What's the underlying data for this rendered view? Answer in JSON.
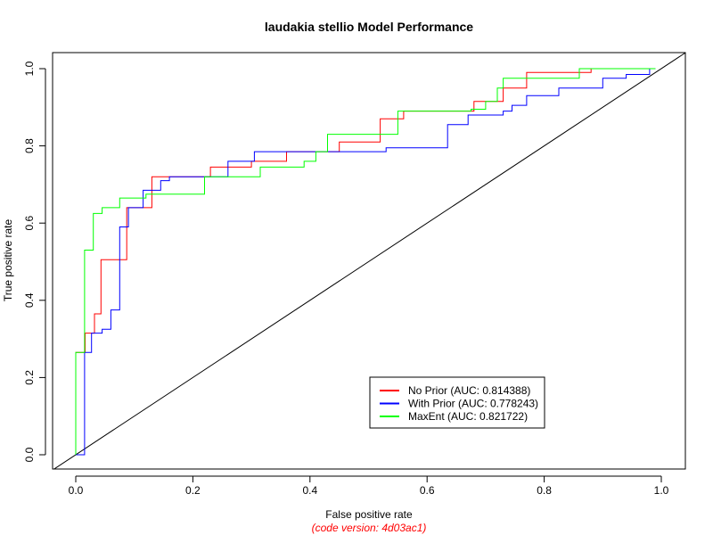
{
  "chart_data": {
    "type": "line",
    "title": "laudakia stellio Model Performance",
    "xlabel": "False positive rate",
    "ylabel": "True positive rate",
    "note": "(code version: 4d03ac1)",
    "note_color": "#ff0000",
    "xlim": [
      0,
      1
    ],
    "ylim": [
      0,
      1
    ],
    "xticks": [
      "0.0",
      "0.2",
      "0.4",
      "0.6",
      "0.8",
      "1.0"
    ],
    "yticks": [
      "0.0",
      "0.2",
      "0.4",
      "0.6",
      "0.8",
      "1.0"
    ],
    "grid": false,
    "legend_position": "bottom-right",
    "reference_line": {
      "x": [
        0,
        1
      ],
      "y": [
        0,
        1
      ],
      "color": "#000000"
    },
    "series": [
      {
        "name": "No Prior (AUC: 0.814388)",
        "color": "#ff0000",
        "x": [
          0.0,
          0.0,
          0.016,
          0.016,
          0.032,
          0.032,
          0.043,
          0.043,
          0.087,
          0.087,
          0.13,
          0.13,
          0.165,
          0.165,
          0.23,
          0.23,
          0.3,
          0.3,
          0.36,
          0.36,
          0.45,
          0.45,
          0.52,
          0.52,
          0.56,
          0.56,
          0.68,
          0.68,
          0.73,
          0.73,
          0.77,
          0.77,
          0.8,
          0.8,
          0.88,
          0.88,
          0.99
        ],
        "y": [
          0.0,
          0.265,
          0.265,
          0.315,
          0.315,
          0.365,
          0.365,
          0.505,
          0.505,
          0.64,
          0.64,
          0.72,
          0.72,
          0.72,
          0.72,
          0.745,
          0.745,
          0.76,
          0.76,
          0.785,
          0.785,
          0.81,
          0.81,
          0.87,
          0.87,
          0.89,
          0.89,
          0.915,
          0.915,
          0.95,
          0.95,
          0.99,
          0.99,
          0.99,
          0.99,
          1.0,
          1.0
        ]
      },
      {
        "name": "With Prior (AUC: 0.778243)",
        "color": "#0000ff",
        "x": [
          0.0,
          0.015,
          0.015,
          0.027,
          0.027,
          0.045,
          0.045,
          0.06,
          0.06,
          0.075,
          0.075,
          0.09,
          0.09,
          0.115,
          0.115,
          0.145,
          0.145,
          0.16,
          0.16,
          0.26,
          0.26,
          0.305,
          0.305,
          0.53,
          0.53,
          0.635,
          0.635,
          0.67,
          0.67,
          0.73,
          0.73,
          0.745,
          0.745,
          0.77,
          0.77,
          0.825,
          0.825,
          0.9,
          0.9,
          0.94,
          0.94,
          0.98,
          0.98,
          0.99
        ],
        "y": [
          0.0,
          0.0,
          0.265,
          0.265,
          0.315,
          0.315,
          0.325,
          0.325,
          0.375,
          0.375,
          0.59,
          0.59,
          0.64,
          0.64,
          0.685,
          0.685,
          0.71,
          0.71,
          0.72,
          0.72,
          0.76,
          0.76,
          0.785,
          0.785,
          0.795,
          0.795,
          0.855,
          0.855,
          0.88,
          0.88,
          0.89,
          0.89,
          0.905,
          0.905,
          0.93,
          0.93,
          0.95,
          0.95,
          0.975,
          0.975,
          0.985,
          0.985,
          1.0,
          1.0
        ]
      },
      {
        "name": "MaxEnt (AUC: 0.821722)",
        "color": "#00ff00",
        "x": [
          0.0,
          0.0,
          0.015,
          0.015,
          0.03,
          0.03,
          0.045,
          0.045,
          0.075,
          0.075,
          0.12,
          0.12,
          0.22,
          0.22,
          0.315,
          0.315,
          0.39,
          0.39,
          0.41,
          0.41,
          0.43,
          0.43,
          0.55,
          0.55,
          0.675,
          0.675,
          0.7,
          0.7,
          0.72,
          0.72,
          0.73,
          0.73,
          0.77,
          0.77,
          0.86,
          0.86,
          0.99
        ],
        "y": [
          0.0,
          0.265,
          0.265,
          0.53,
          0.53,
          0.625,
          0.625,
          0.64,
          0.64,
          0.665,
          0.665,
          0.675,
          0.675,
          0.72,
          0.72,
          0.745,
          0.745,
          0.76,
          0.76,
          0.785,
          0.785,
          0.83,
          0.83,
          0.89,
          0.89,
          0.895,
          0.895,
          0.915,
          0.915,
          0.95,
          0.95,
          0.975,
          0.975,
          0.975,
          0.975,
          1.0,
          1.0
        ]
      }
    ]
  }
}
